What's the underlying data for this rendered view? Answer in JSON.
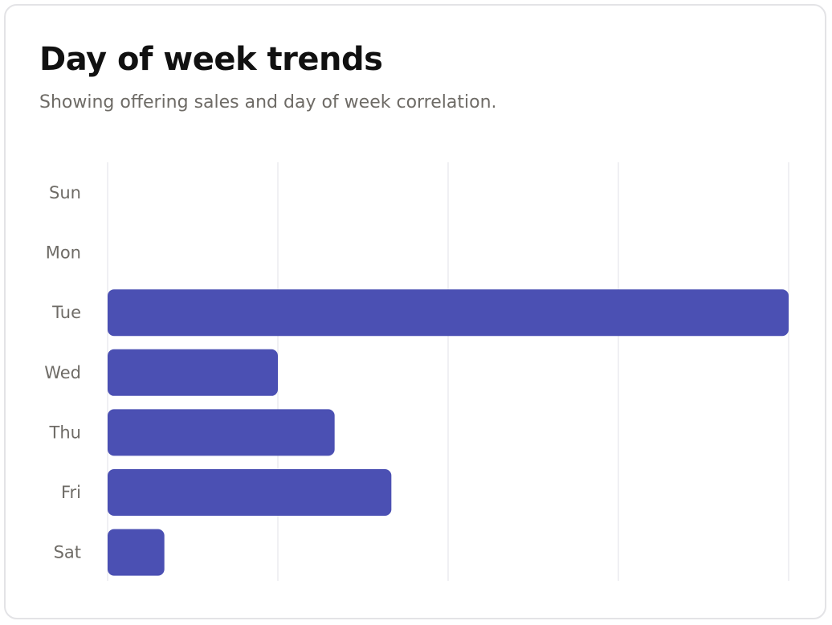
{
  "card": {
    "title": "Day of week trends",
    "subtitle": "Showing offering sales and day of week correlation."
  },
  "colors": {
    "bar": "#4b50b3",
    "grid": "#ececef",
    "label": "#6e6b66",
    "title": "#111111",
    "border": "#e3e3e6"
  },
  "chart_data": {
    "type": "bar",
    "orientation": "horizontal",
    "title": "Day of week trends",
    "subtitle": "Showing offering sales and day of week correlation.",
    "categories": [
      "Sun",
      "Mon",
      "Tue",
      "Wed",
      "Thu",
      "Fri",
      "Sat"
    ],
    "values": [
      0,
      0,
      12,
      3,
      4,
      5,
      1
    ],
    "xlim": [
      0,
      12
    ],
    "x_gridlines": [
      0,
      3,
      6,
      9,
      12
    ],
    "x_tick_labels_shown": false,
    "grid": true,
    "legend": "none"
  }
}
